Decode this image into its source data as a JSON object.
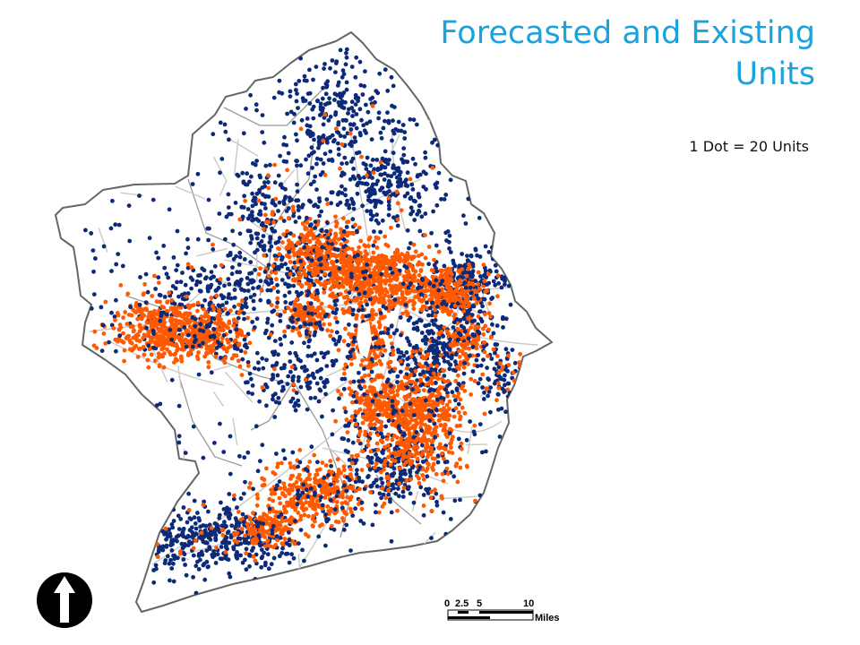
{
  "title": "Forecasted and Existing Units",
  "legend": {
    "dot_ratio": "1 Dot = 20 Units"
  },
  "colors": {
    "forecasted_units": "#ff5a00",
    "existing_units": "#0c2a78",
    "boundary": "#666666",
    "roads": "#c9c9c9"
  },
  "north_arrow": {
    "icon": "north-arrow-icon"
  },
  "scale_bar": {
    "ticks": [
      "0",
      "2.5",
      "5",
      "10"
    ],
    "unit": "Miles"
  }
}
